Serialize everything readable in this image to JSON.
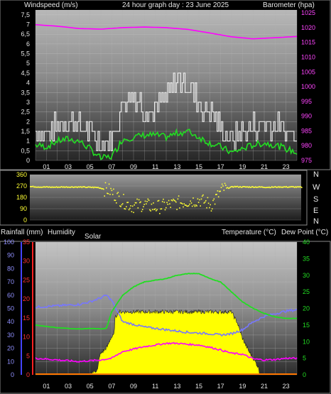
{
  "header": {
    "left_label": "Windspeed (m/s)",
    "title": "24 hour graph day : 23 June 2025",
    "right_label": "Barometer (hpa)"
  },
  "middle_header": {
    "rainfall_label": "Rainfall (mm)",
    "humidity_label": "Humidity",
    "solar_label": "Solar",
    "temperature_label": "Temperature (°C)",
    "dewpoint_label": "Dew Point (°C)"
  },
  "compass": [
    "N",
    "W",
    "S",
    "E",
    "N"
  ],
  "colors": {
    "wind_gust": "#e8e8e8",
    "wind_avg": "#22dd22",
    "barometer": "#ff00ff",
    "direction": "#ffff33",
    "humidity": "#7777ff",
    "rainfall_axis": "#ff2222",
    "temperature": "#22dd22",
    "dew_point": "#ff00ff",
    "solar": "#ffff00",
    "rain": "#ff7700"
  },
  "chart_data": [
    {
      "type": "line",
      "name": "wind-barometer",
      "x_ticks": [
        "01",
        "03",
        "05",
        "07",
        "09",
        "11",
        "13",
        "15",
        "17",
        "19",
        "21",
        "23"
      ],
      "y_left_ticks": [
        "0",
        "0,5",
        "1",
        "1,5",
        "2",
        "2,5",
        "3",
        "3,5",
        "4",
        "4,5",
        "5",
        "5,5",
        "6",
        "6,5",
        "7",
        "7,5"
      ],
      "y_right_ticks": [
        "975",
        "980",
        "985",
        "990",
        "995",
        "1000",
        "1005",
        "1010",
        "1015",
        "1020",
        "1025"
      ],
      "ylim_left": [
        0,
        7.75
      ],
      "ylim_right": [
        975,
        1026
      ],
      "series": [
        {
          "name": "gust",
          "axis": "left",
          "x": [
            0,
            1,
            2,
            3,
            4,
            5,
            6,
            7,
            8,
            9,
            10,
            11,
            12,
            13,
            14,
            15,
            16,
            17,
            18,
            19,
            20,
            21,
            22,
            23,
            24
          ],
          "values": [
            1.5,
            1.4,
            1.9,
            2.0,
            1.8,
            1.4,
            0.9,
            1.1,
            3.0,
            3.4,
            2.7,
            2.6,
            3.2,
            4.2,
            3.9,
            3.0,
            2.4,
            1.8,
            1.0,
            1.5,
            1.8,
            1.8,
            1.8,
            1.6,
            1.4
          ]
        },
        {
          "name": "average",
          "axis": "left",
          "x": [
            0,
            1,
            2,
            3,
            4,
            5,
            6,
            7,
            8,
            9,
            10,
            11,
            12,
            13,
            14,
            15,
            16,
            17,
            18,
            19,
            20,
            21,
            22,
            23,
            24
          ],
          "values": [
            0.8,
            0.7,
            1.0,
            1.1,
            1.0,
            0.6,
            0.1,
            0.2,
            1.1,
            1.2,
            1.3,
            1.3,
            1.2,
            1.4,
            1.5,
            1.2,
            0.9,
            0.7,
            0.4,
            0.6,
            0.8,
            0.9,
            0.8,
            0.6,
            0.4
          ]
        },
        {
          "name": "barometer",
          "axis": "right",
          "x": [
            0,
            2,
            4,
            6,
            8,
            10,
            12,
            14,
            16,
            18,
            20,
            22,
            24
          ],
          "values": [
            1021,
            1020.5,
            1019.7,
            1019.5,
            1020,
            1020.2,
            1020,
            1019.4,
            1018.2,
            1016.9,
            1016.2,
            1016.6,
            1017
          ]
        }
      ]
    },
    {
      "type": "scatter",
      "name": "wind-direction",
      "y_ticks": [
        "0",
        "90",
        "180",
        "270",
        "360"
      ],
      "ylim": [
        0,
        360
      ],
      "x": [
        0,
        1,
        2,
        3,
        4,
        5,
        6,
        7,
        8,
        9,
        10,
        11,
        12,
        13,
        14,
        15,
        16,
        17,
        18,
        19,
        20,
        21,
        22,
        23,
        24
      ],
      "values": [
        265,
        262,
        260,
        262,
        262,
        260,
        258,
        235,
        160,
        110,
        125,
        100,
        115,
        135,
        150,
        160,
        120,
        245,
        265,
        262,
        262,
        260,
        262,
        262,
        260
      ]
    },
    {
      "type": "line",
      "name": "temperature-humidity-solar",
      "x_ticks": [
        "01",
        "03",
        "05",
        "07",
        "09",
        "11",
        "13",
        "15",
        "17",
        "19",
        "21",
        "23"
      ],
      "humidity_ticks": [
        "0",
        "10",
        "20",
        "30",
        "40",
        "50",
        "60",
        "70",
        "80",
        "90",
        "100"
      ],
      "rain_ticks": [
        "0",
        "5",
        "10",
        "15",
        "20",
        "25",
        "30",
        "35"
      ],
      "temp_ticks": [
        "0",
        "5",
        "10",
        "15",
        "20",
        "25",
        "30",
        "35",
        "40"
      ],
      "humidity_lim": [
        0,
        100
      ],
      "rain_lim": [
        0,
        35
      ],
      "temp_lim": [
        0,
        40
      ],
      "series": [
        {
          "name": "humidity",
          "axis": "humidity",
          "x": [
            0,
            2,
            4,
            5,
            6,
            6.5,
            7,
            8,
            10,
            12,
            14,
            16,
            17,
            18,
            19,
            20,
            21,
            22,
            23,
            24
          ],
          "values": [
            51,
            52,
            53,
            55,
            58,
            60,
            56,
            40,
            36,
            34,
            32,
            31,
            30,
            31,
            34,
            40,
            44,
            46,
            48,
            49
          ]
        },
        {
          "name": "temperature",
          "axis": "temp",
          "x": [
            0,
            1,
            2,
            3,
            4,
            5,
            6,
            6.5,
            7,
            8,
            9,
            10,
            11,
            12,
            13,
            14,
            15,
            16,
            17,
            18,
            19,
            20,
            21,
            22,
            23,
            24
          ],
          "values": [
            15,
            14.6,
            14.2,
            14,
            13.8,
            14,
            13.8,
            14,
            19,
            24,
            26.5,
            28,
            28.5,
            29,
            30,
            30.5,
            30.5,
            29,
            28,
            25,
            22,
            20,
            18.5,
            17.5,
            17,
            17
          ]
        },
        {
          "name": "dew point",
          "axis": "temp",
          "x": [
            0,
            2,
            4,
            6,
            7,
            8,
            10,
            12,
            13,
            14,
            15,
            16,
            17,
            18,
            19,
            20,
            21,
            22,
            23,
            24
          ],
          "values": [
            5,
            4.5,
            4,
            4.5,
            5,
            7,
            8.5,
            9.5,
            9.5,
            9.2,
            9,
            8.3,
            7.5,
            6.5,
            6.2,
            4.8,
            4.5,
            4.6,
            5,
            5
          ]
        },
        {
          "name": "solar",
          "axis": "temp",
          "x": [
            0,
            4.9,
            5.0,
            5.7,
            5.9,
            6.6,
            6.9,
            7.2,
            7.3,
            7.6,
            18,
            18.3,
            18.5,
            19,
            19.6,
            20.0,
            20.5,
            20.6,
            24
          ],
          "values": [
            0,
            0,
            0.4,
            1.5,
            6,
            8.5,
            11,
            12,
            17,
            19,
            19,
            17,
            16,
            11,
            7,
            5,
            2,
            0,
            0
          ]
        }
      ]
    }
  ]
}
